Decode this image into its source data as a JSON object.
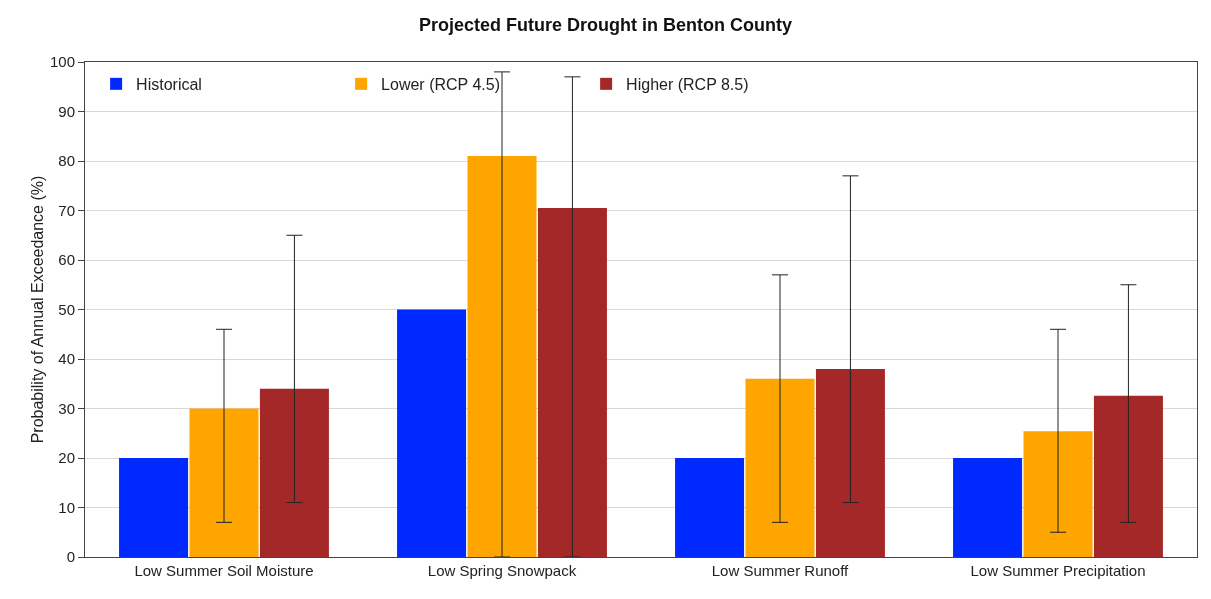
{
  "chart_data": {
    "type": "bar",
    "title": "Projected Future Drought in Benton County",
    "ylabel": "Probability of Annual Exceedance (%)",
    "categories": [
      "Low Summer Soil Moisture",
      "Low Spring Snowpack",
      "Low Summer Runoff",
      "Low Summer Precipitation"
    ],
    "series": [
      {
        "name": "Historical",
        "color": "#0029ff",
        "values": [
          20,
          50,
          20,
          20
        ]
      },
      {
        "name": "Lower (RCP 4.5)",
        "color": "#ffa500",
        "values": [
          30,
          81,
          36,
          25.4
        ],
        "errors": [
          [
            7,
            46
          ],
          [
            0,
            98
          ],
          [
            7,
            57
          ],
          [
            5,
            46
          ]
        ]
      },
      {
        "name": "Higher (RCP 8.5)",
        "color": "#a52828",
        "values": [
          34,
          70.5,
          38,
          32.6
        ],
        "errors": [
          [
            11,
            65
          ],
          [
            0,
            97
          ],
          [
            11,
            77
          ],
          [
            7,
            55
          ]
        ]
      }
    ],
    "ylim": [
      0,
      100
    ],
    "yticks": [
      0,
      10,
      20,
      30,
      40,
      50,
      60,
      70,
      80,
      90,
      100
    ],
    "grid": "y",
    "legend": "top left"
  }
}
